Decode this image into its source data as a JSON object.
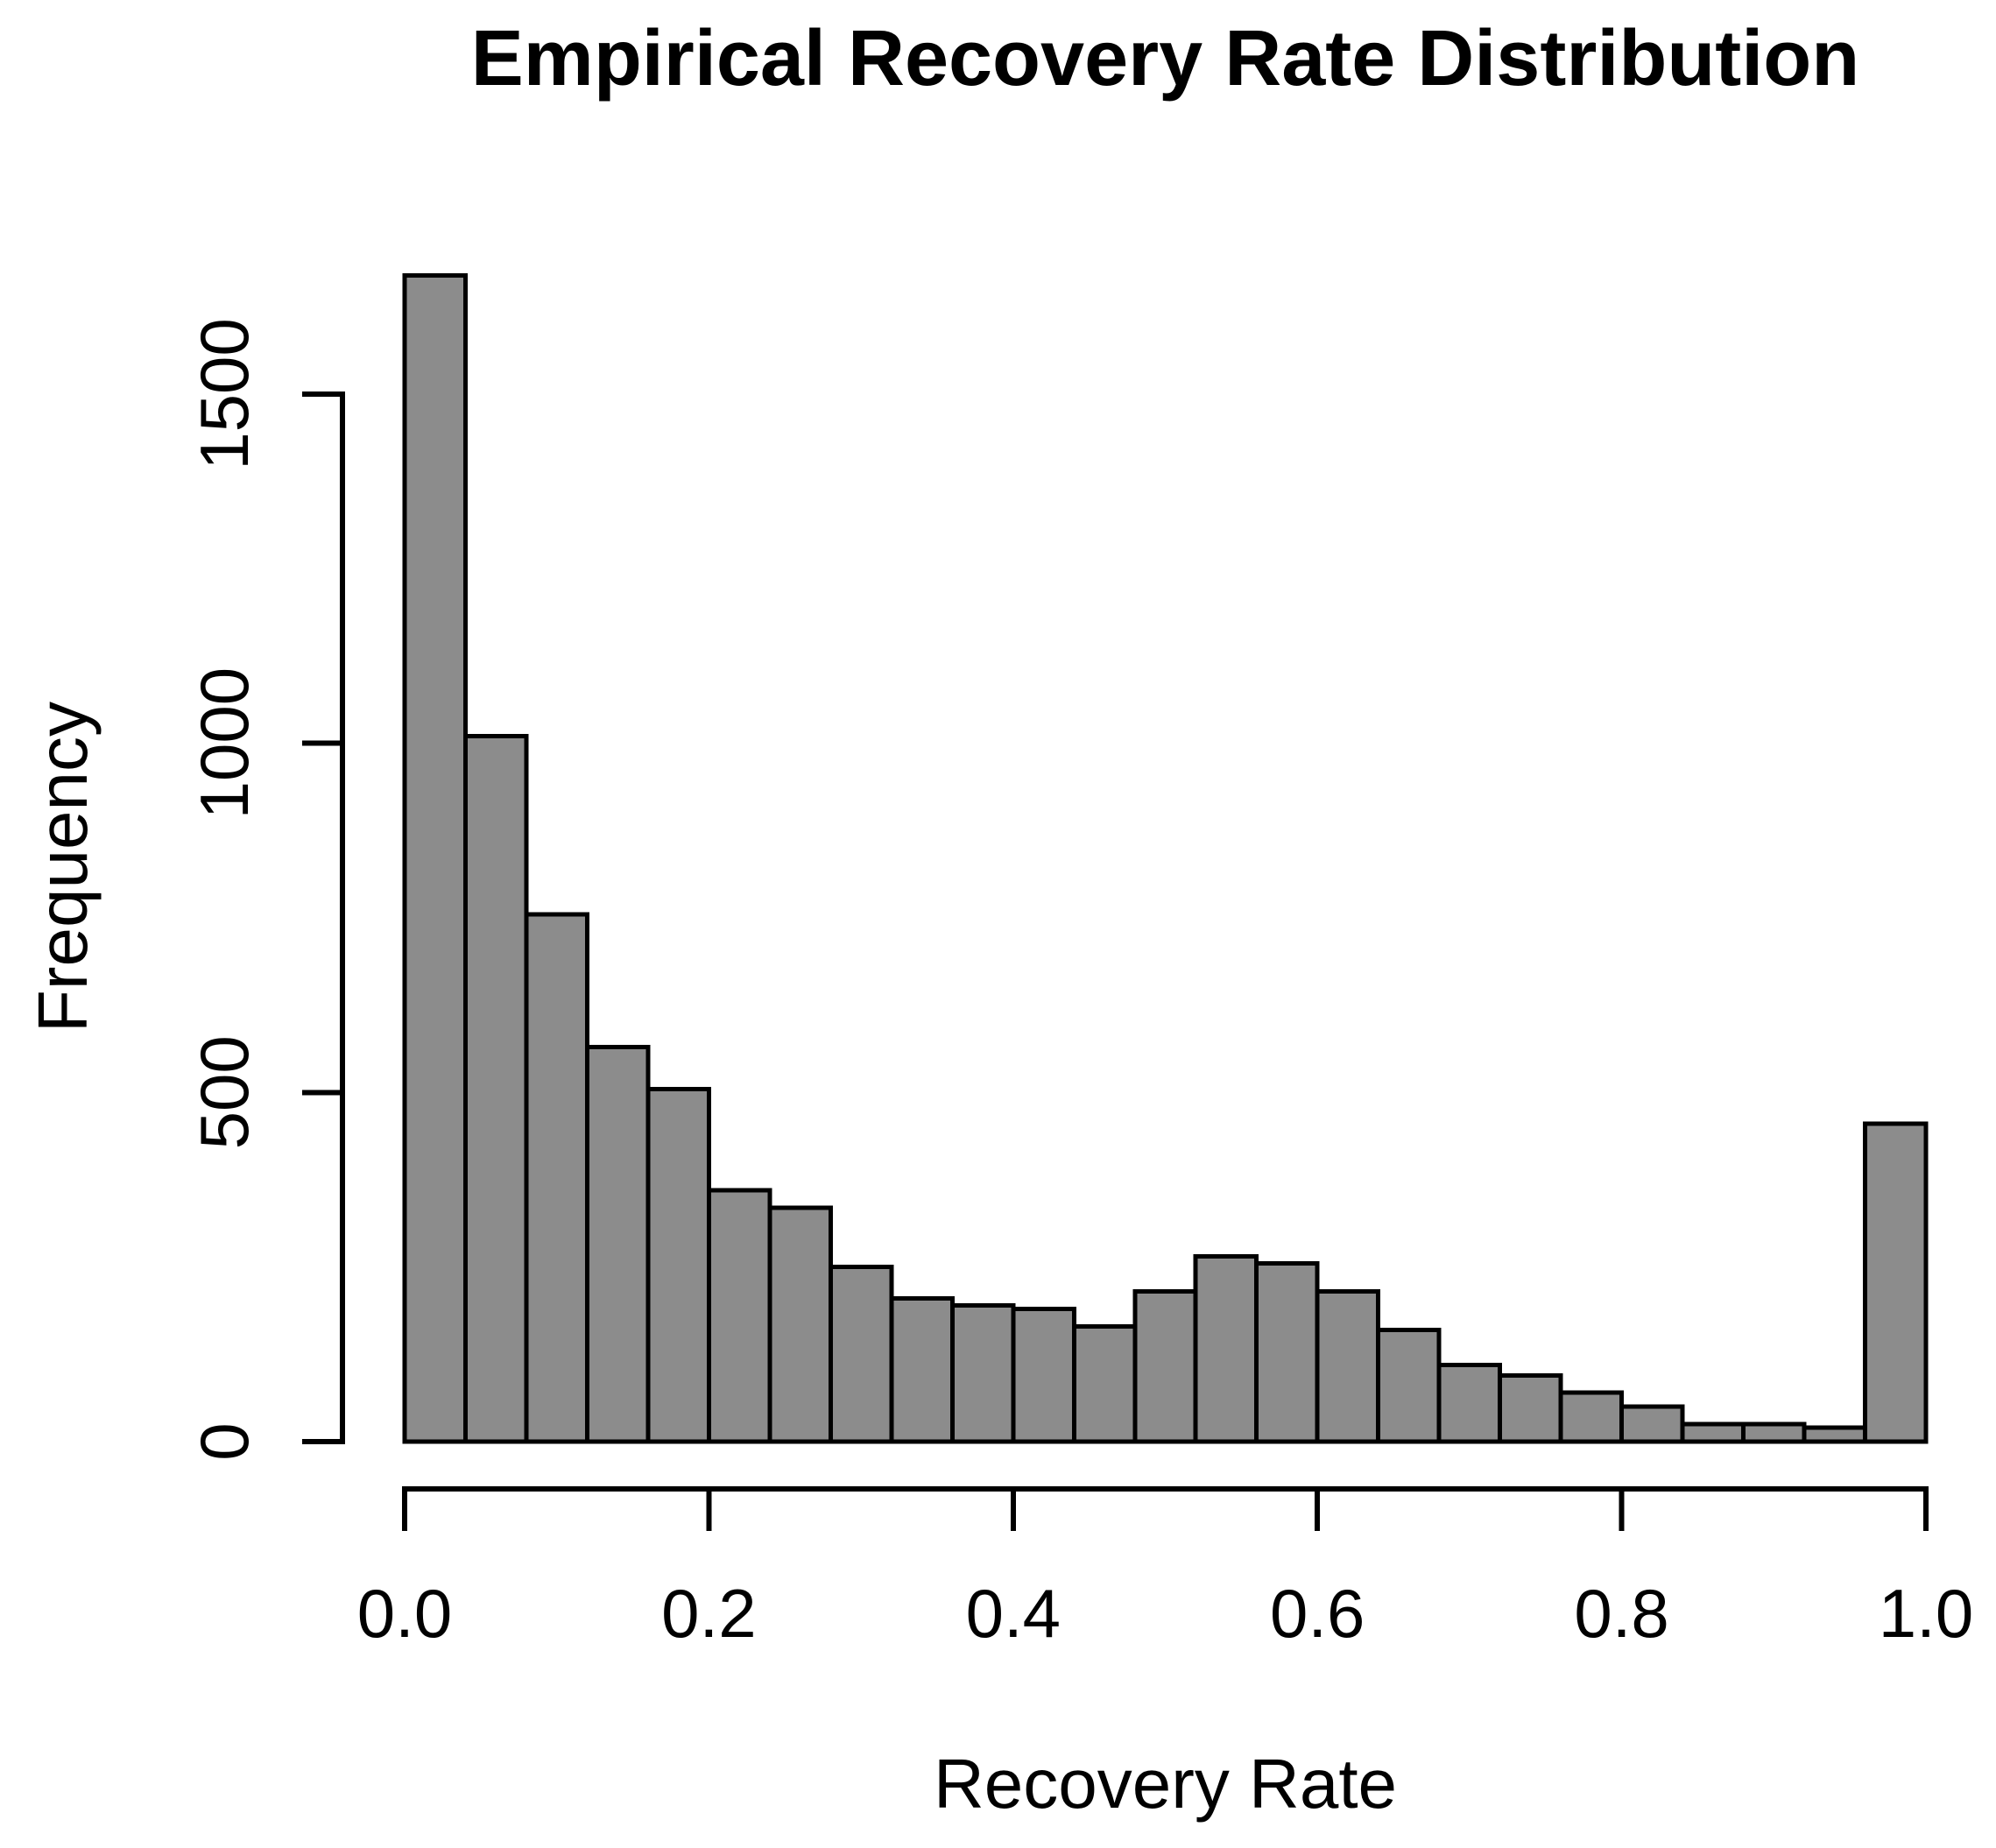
{
  "chart_data": {
    "type": "bar",
    "subtype": "histogram",
    "title": "Empirical Recovery Rate Distribution",
    "xlabel": "Recovery Rate",
    "ylabel": "Frequency",
    "bin_edges": [
      0.0,
      0.04,
      0.08,
      0.12,
      0.16,
      0.2,
      0.24,
      0.28,
      0.32,
      0.36,
      0.4,
      0.44,
      0.48,
      0.52,
      0.56,
      0.6,
      0.64,
      0.68,
      0.72,
      0.76,
      0.8,
      0.84,
      0.88,
      0.92,
      0.96,
      1.0
    ],
    "values": [
      1670,
      1010,
      755,
      565,
      505,
      360,
      335,
      250,
      205,
      195,
      190,
      165,
      215,
      265,
      255,
      215,
      160,
      110,
      95,
      70,
      50,
      25,
      25,
      20,
      455
    ],
    "x_ticks": [
      {
        "value": 0.0,
        "label": "0.0"
      },
      {
        "value": 0.2,
        "label": "0.2"
      },
      {
        "value": 0.4,
        "label": "0.4"
      },
      {
        "value": 0.6,
        "label": "0.6"
      },
      {
        "value": 0.8,
        "label": "0.8"
      },
      {
        "value": 1.0,
        "label": "1.0"
      }
    ],
    "y_ticks": [
      {
        "value": 0,
        "label": "0"
      },
      {
        "value": 500,
        "label": "500"
      },
      {
        "value": 1000,
        "label": "1000"
      },
      {
        "value": 1500,
        "label": "1500"
      }
    ],
    "xlim": [
      0.0,
      1.0
    ],
    "ylim": [
      0,
      1500
    ],
    "grid": false,
    "legend": false,
    "colors": {
      "bar_fill": "#8c8c8c",
      "bar_border": "#000000",
      "axis": "#000000",
      "text": "#000000",
      "background": "#ffffff"
    }
  }
}
